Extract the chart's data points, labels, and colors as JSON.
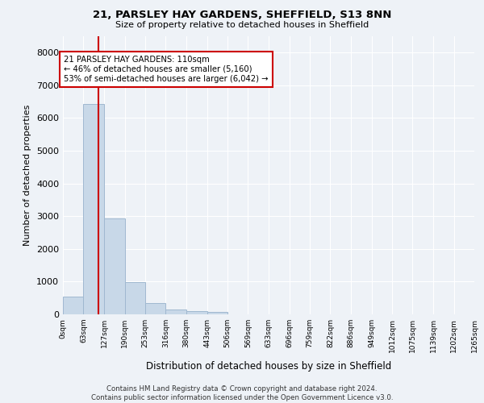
{
  "title_line1": "21, PARSLEY HAY GARDENS, SHEFFIELD, S13 8NN",
  "title_line2": "Size of property relative to detached houses in Sheffield",
  "xlabel": "Distribution of detached houses by size in Sheffield",
  "ylabel": "Number of detached properties",
  "footer_line1": "Contains HM Land Registry data © Crown copyright and database right 2024.",
  "footer_line2": "Contains public sector information licensed under the Open Government Licence v3.0.",
  "annotation_line1": "21 PARSLEY HAY GARDENS: 110sqm",
  "annotation_line2": "← 46% of detached houses are smaller (5,160)",
  "annotation_line3": "53% of semi-detached houses are larger (6,042) →",
  "property_size_sqm": 110,
  "bar_edges": [
    0,
    63,
    127,
    190,
    253,
    316,
    380,
    443,
    506,
    569,
    633,
    696,
    759,
    822,
    886,
    949,
    1012,
    1075,
    1139,
    1202,
    1265
  ],
  "bar_heights": [
    550,
    6420,
    2940,
    980,
    335,
    155,
    100,
    70,
    0,
    0,
    0,
    0,
    0,
    0,
    0,
    0,
    0,
    0,
    0,
    0
  ],
  "bar_color": "#c8d8e8",
  "bar_edge_color": "#a0b8d0",
  "line_color": "#cc0000",
  "annotation_box_color": "#cc0000",
  "background_color": "#eef2f7",
  "grid_color": "#ffffff",
  "ylim": [
    0,
    8500
  ],
  "yticks": [
    0,
    1000,
    2000,
    3000,
    4000,
    5000,
    6000,
    7000,
    8000
  ],
  "tick_labels": [
    "0sqm",
    "63sqm",
    "127sqm",
    "190sqm",
    "253sqm",
    "316sqm",
    "380sqm",
    "443sqm",
    "506sqm",
    "569sqm",
    "633sqm",
    "696sqm",
    "759sqm",
    "822sqm",
    "886sqm",
    "949sqm",
    "1012sqm",
    "1075sqm",
    "1139sqm",
    "1202sqm",
    "1265sqm"
  ]
}
